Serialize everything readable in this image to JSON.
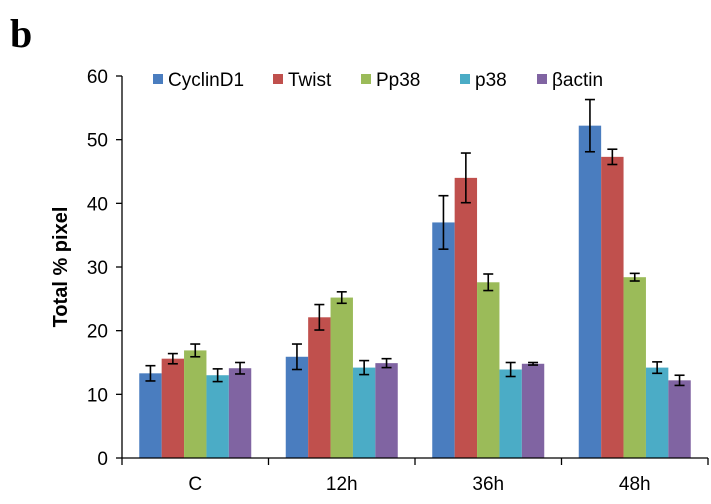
{
  "panel_label": "b",
  "chart_data": {
    "type": "bar",
    "title": "",
    "xlabel": "",
    "ylabel": "Total % pixel",
    "ylim": [
      0,
      60
    ],
    "yticks": [
      0,
      10,
      20,
      30,
      40,
      50,
      60
    ],
    "grid": false,
    "legend_position": "top",
    "categories": [
      "C",
      "12h",
      "36h",
      "48h"
    ],
    "series": [
      {
        "name": "CyclinD1",
        "color": "#4a7dbf",
        "values": [
          13.3,
          15.9,
          37.0,
          52.2
        ],
        "errors": [
          1.2,
          2.0,
          4.2,
          4.1
        ]
      },
      {
        "name": "Twist",
        "color": "#c0504d",
        "values": [
          15.6,
          22.1,
          44.0,
          47.3
        ],
        "errors": [
          0.8,
          2.0,
          3.9,
          1.2
        ]
      },
      {
        "name": "Pp38",
        "color": "#9bbb59",
        "values": [
          16.9,
          25.2,
          27.6,
          28.4
        ],
        "errors": [
          1.0,
          0.9,
          1.3,
          0.6
        ]
      },
      {
        "name": "p38",
        "color": "#4bacc6",
        "values": [
          13.0,
          14.2,
          13.9,
          14.2
        ],
        "errors": [
          1.0,
          1.1,
          1.1,
          0.9
        ]
      },
      {
        "name": "βactin",
        "color": "#8064a2",
        "values": [
          14.1,
          14.9,
          14.8,
          12.2
        ],
        "errors": [
          0.9,
          0.7,
          0.2,
          0.8
        ]
      }
    ]
  }
}
